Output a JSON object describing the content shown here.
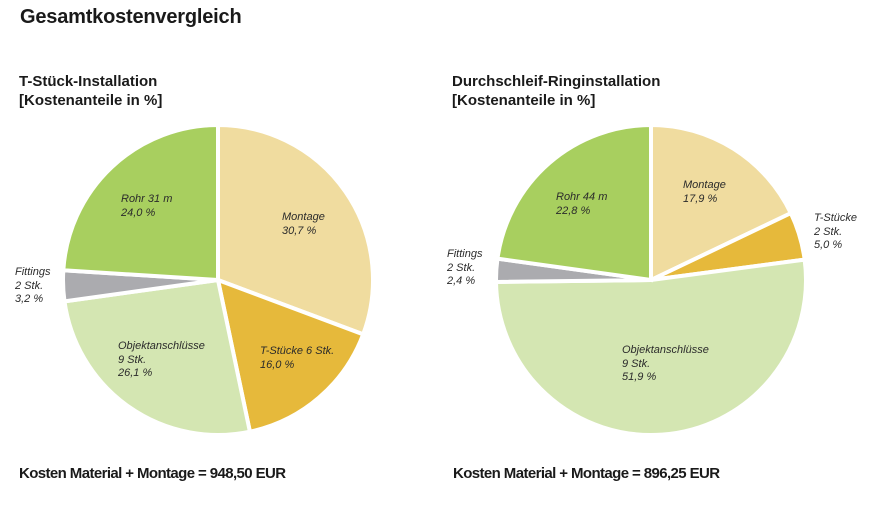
{
  "page": {
    "title": "Gesamtkostenvergleich"
  },
  "charts": [
    {
      "heading_line1": "T-Stück-Installation",
      "heading_line2": "[Kostenanteile in %]",
      "total": "Kosten Material + Montage = 948,50 EUR"
    },
    {
      "heading_line1": "Durchschleif-Ringinstallation",
      "heading_line2": "[Kostenanteile in %]",
      "total": "Kosten Material + Montage = 896,25 EUR"
    }
  ],
  "colors": {
    "montage": "#F0DC9F",
    "t_stuecke": "#E6B93B",
    "objektanschluesse": "#D4E6B2",
    "fittings": "#ABABAF",
    "rohr": "#A8CF5F"
  },
  "chart_data": [
    {
      "type": "pie",
      "title": "T-Stück-Installation [Kostenanteile in %]",
      "start_angle": "12 o'clock, clockwise",
      "categories": [
        "Montage",
        "T-Stücke",
        "Objektanschlüsse",
        "Fittings",
        "Rohr"
      ],
      "values": [
        30.7,
        16.0,
        26.1,
        3.2,
        24.0
      ],
      "total_cost_eur": 948.5,
      "slices": [
        {
          "name": "Montage",
          "value": 30.7,
          "color": "#F0DC9F",
          "label_lines": [
            "Montage",
            "30,7 %"
          ]
        },
        {
          "name": "T-Stücke",
          "value": 16.0,
          "color": "#E6B93B",
          "label_lines": [
            "T-Stücke 6 Stk.",
            "16,0 %"
          ]
        },
        {
          "name": "Objektanschlüsse",
          "value": 26.1,
          "color": "#D4E6B2",
          "label_lines": [
            "Objektanschlüsse",
            "9 Stk.",
            "26,1 %"
          ]
        },
        {
          "name": "Fittings",
          "value": 3.2,
          "color": "#ABABAF",
          "label_lines": [
            "Fittings",
            "2 Stk.",
            "3,2 %"
          ]
        },
        {
          "name": "Rohr",
          "value": 24.0,
          "color": "#A8CF5F",
          "label_lines": [
            "Rohr 31 m",
            "24,0 %"
          ]
        }
      ]
    },
    {
      "type": "pie",
      "title": "Durchschleif-Ringinstallation [Kostenanteile in %]",
      "start_angle": "12 o'clock, clockwise",
      "categories": [
        "Montage",
        "T-Stücke",
        "Objektanschlüsse",
        "Fittings",
        "Rohr"
      ],
      "values": [
        17.9,
        5.0,
        51.9,
        2.4,
        22.8
      ],
      "total_cost_eur": 896.25,
      "slices": [
        {
          "name": "Montage",
          "value": 17.9,
          "color": "#F0DC9F",
          "label_lines": [
            "Montage",
            "17,9 %"
          ]
        },
        {
          "name": "T-Stücke",
          "value": 5.0,
          "color": "#E6B93B",
          "label_lines": [
            "T-Stücke",
            "2 Stk.",
            "5,0 %"
          ]
        },
        {
          "name": "Objektanschlüsse",
          "value": 51.9,
          "color": "#D4E6B2",
          "label_lines": [
            "Objektanschlüsse",
            "9 Stk.",
            "51,9 %"
          ]
        },
        {
          "name": "Fittings",
          "value": 2.4,
          "color": "#ABABAF",
          "label_lines": [
            "Fittings",
            "2 Stk.",
            "2,4 %"
          ]
        },
        {
          "name": "Rohr",
          "value": 22.8,
          "color": "#A8CF5F",
          "label_lines": [
            "Rohr 44 m",
            "22,8 %"
          ]
        }
      ]
    }
  ]
}
